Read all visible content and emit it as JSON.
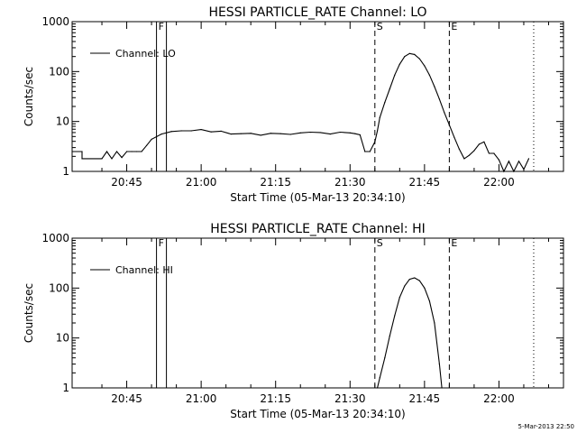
{
  "chart_data": [
    {
      "type": "line",
      "title": "HESSI PARTICLE_RATE Channel: LO",
      "xlabel": "Start Time (05-Mar-13 20:34:10)",
      "ylabel": "Counts/sec",
      "yscale": "log",
      "ylim": [
        1,
        1000
      ],
      "xlim": [
        "20:34",
        "22:13"
      ],
      "x_ticks": [
        "20:45",
        "21:00",
        "21:15",
        "21:30",
        "21:45",
        "22:00"
      ],
      "y_ticks": [
        "1",
        "10",
        "100",
        "1000"
      ],
      "legend": "top-left",
      "series": [
        {
          "name": "Channel: LO",
          "x": [
            "20:34",
            "20:36",
            "20:36",
            "20:40",
            "20:41",
            "20:42",
            "20:43",
            "20:44",
            "20:45",
            "20:46",
            "20:47",
            "20:48",
            "20:49",
            "20:50",
            "20:52",
            "20:54",
            "20:56",
            "20:58",
            "21:00",
            "21:02",
            "21:04",
            "21:06",
            "21:08",
            "21:10",
            "21:12",
            "21:14",
            "21:16",
            "21:18",
            "21:20",
            "21:22",
            "21:24",
            "21:26",
            "21:28",
            "21:30",
            "21:31",
            "21:32",
            "21:33",
            "21:34",
            "21:35",
            "21:35.5",
            "21:36",
            "21:37",
            "21:38",
            "21:39",
            "21:40",
            "21:41",
            "21:42",
            "21:43",
            "21:44",
            "21:45",
            "21:46",
            "21:47",
            "21:48",
            "21:49",
            "21:50",
            "21:51",
            "21:52",
            "21:53",
            "21:54",
            "21:55",
            "21:56",
            "21:57",
            "21:58",
            "21:59",
            "22:00",
            "22:01",
            "22:02",
            "22:03",
            "22:04",
            "22:05",
            "22:06"
          ],
          "y": [
            2.5,
            2.5,
            1.8,
            1.8,
            2.5,
            1.8,
            2.5,
            1.9,
            2.5,
            2.5,
            2.5,
            2.5,
            3.3,
            4.4,
            5.6,
            6.3,
            6.5,
            6.5,
            6.9,
            6.2,
            6.4,
            5.6,
            5.7,
            5.8,
            5.3,
            5.8,
            5.7,
            5.5,
            5.9,
            6.1,
            6.0,
            5.6,
            6.1,
            5.9,
            5.7,
            5.4,
            2.5,
            2.5,
            3.9,
            6.5,
            12,
            24,
            45,
            85,
            140,
            200,
            230,
            220,
            180,
            130,
            85,
            50,
            28,
            15,
            8.5,
            4.8,
            2.8,
            1.8,
            2.1,
            2.6,
            3.5,
            3.9,
            2.3,
            2.3,
            1.7,
            1.0,
            1.6,
            1.0,
            1.6,
            1.1,
            1.8
          ]
        }
      ],
      "markers": [
        {
          "label": "F",
          "x": "20:51",
          "style": "solid"
        },
        {
          "label": "",
          "x": "20:53",
          "style": "solid"
        },
        {
          "label": "S",
          "x": "21:35",
          "style": "dashed"
        },
        {
          "label": "E",
          "x": "21:50",
          "style": "dashed"
        },
        {
          "label": "",
          "x": "22:07",
          "style": "dotted"
        }
      ]
    },
    {
      "type": "line",
      "title": "HESSI PARTICLE_RATE Channel: HI",
      "xlabel": "Start Time (05-Mar-13 20:34:10)",
      "ylabel": "Counts/sec",
      "yscale": "log",
      "ylim": [
        1,
        1000
      ],
      "xlim": [
        "20:34",
        "22:13"
      ],
      "x_ticks": [
        "20:45",
        "21:00",
        "21:15",
        "21:30",
        "21:45",
        "22:00"
      ],
      "y_ticks": [
        "1",
        "10",
        "100",
        "1000"
      ],
      "legend": "top-left",
      "series": [
        {
          "name": "Channel: HI",
          "x": [
            "21:35.5",
            "21:36",
            "21:37",
            "21:38",
            "21:39",
            "21:40",
            "21:41",
            "21:42",
            "21:43",
            "21:44",
            "21:45",
            "21:46",
            "21:47",
            "21:48",
            "21:48.5"
          ],
          "y": [
            1.0,
            1.6,
            4,
            11,
            28,
            65,
            110,
            150,
            160,
            140,
            100,
            55,
            20,
            3,
            1.0
          ]
        }
      ],
      "markers": [
        {
          "label": "F",
          "x": "20:51",
          "style": "solid"
        },
        {
          "label": "",
          "x": "20:53",
          "style": "solid"
        },
        {
          "label": "S",
          "x": "21:35",
          "style": "dashed"
        },
        {
          "label": "E",
          "x": "21:50",
          "style": "dashed"
        },
        {
          "label": "",
          "x": "22:07",
          "style": "dotted"
        }
      ]
    }
  ],
  "footer": "5-Mar-2013 22:50"
}
